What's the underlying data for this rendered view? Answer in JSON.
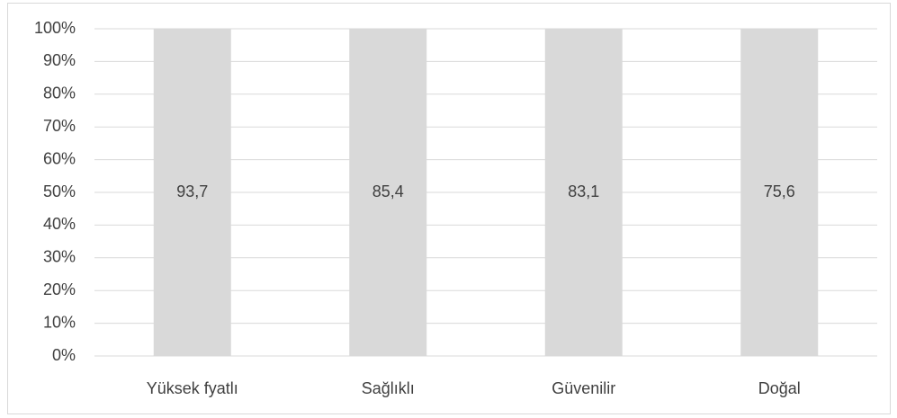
{
  "chart_data": {
    "type": "bar",
    "stacking": "percent",
    "categories": [
      "Yüksek fyatlı",
      "Sağlıklı",
      "Güvenilir",
      "Doğal"
    ],
    "values": [
      93.7,
      85.4,
      83.1,
      75.6
    ],
    "value_labels": [
      "93,7",
      "85,4",
      "83,1",
      "75,6"
    ],
    "color": "#d9d9d9",
    "ylim": [
      0,
      100
    ],
    "yticks": [
      {
        "value": 0,
        "label": "0%"
      },
      {
        "value": 10,
        "label": "10%"
      },
      {
        "value": 20,
        "label": "20%"
      },
      {
        "value": 30,
        "label": "30%"
      },
      {
        "value": 40,
        "label": "40%"
      },
      {
        "value": 50,
        "label": "50%"
      },
      {
        "value": 60,
        "label": "60%"
      },
      {
        "value": 70,
        "label": "70%"
      },
      {
        "value": 80,
        "label": "80%"
      },
      {
        "value": 90,
        "label": "90%"
      },
      {
        "value": 100,
        "label": "100%"
      }
    ],
    "grid": true
  }
}
